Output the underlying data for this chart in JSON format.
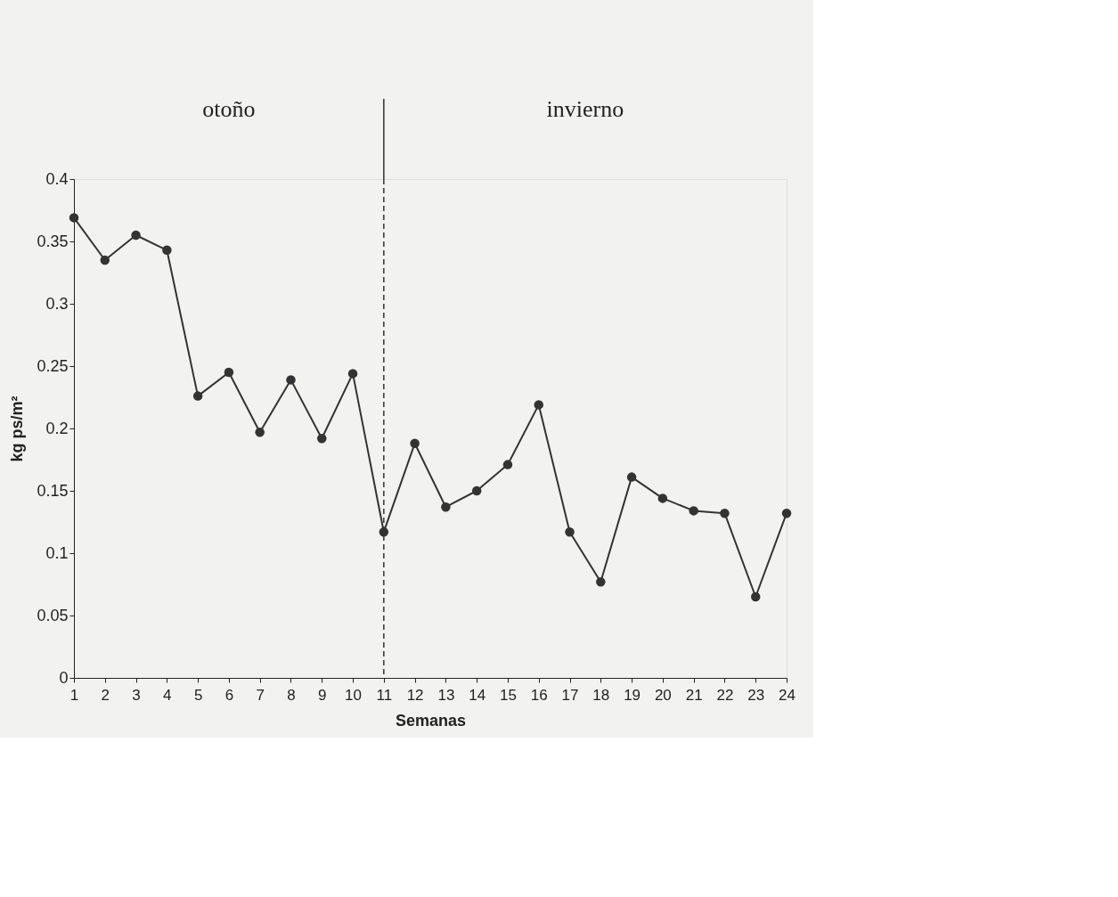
{
  "chart_data": {
    "type": "line",
    "xlabel": "Semanas",
    "ylabel": "kg ps/m²",
    "x": [
      1,
      2,
      3,
      4,
      5,
      6,
      7,
      8,
      9,
      10,
      11,
      12,
      13,
      14,
      15,
      16,
      17,
      18,
      19,
      20,
      21,
      22,
      23,
      24
    ],
    "series": [
      {
        "color": "#333333",
        "values": [
          0.369,
          0.335,
          0.355,
          0.343,
          0.226,
          0.245,
          0.197,
          0.239,
          0.192,
          0.244,
          0.117,
          0.188,
          0.137,
          0.15,
          0.171,
          0.219,
          0.117,
          0.077,
          0.161,
          0.144,
          0.134,
          0.132,
          0.065,
          0.132
        ]
      }
    ],
    "xlim": [
      1,
      24
    ],
    "xticks": [
      1,
      2,
      3,
      4,
      5,
      6,
      7,
      8,
      9,
      10,
      11,
      12,
      13,
      14,
      15,
      16,
      17,
      18,
      19,
      20,
      21,
      22,
      23,
      24
    ],
    "ylim": [
      0,
      0.4
    ],
    "yticks": [
      0,
      0.05,
      0.1,
      0.15,
      0.2,
      0.25,
      0.3,
      0.35,
      0.4
    ],
    "ref_lines": [
      {
        "axis": "x",
        "value": 11,
        "line_style": "dashed",
        "color": "#333333"
      }
    ],
    "annotations": [
      "otoño",
      "invierno"
    ],
    "marker": "circle",
    "line_style": "solid",
    "grid": false
  }
}
